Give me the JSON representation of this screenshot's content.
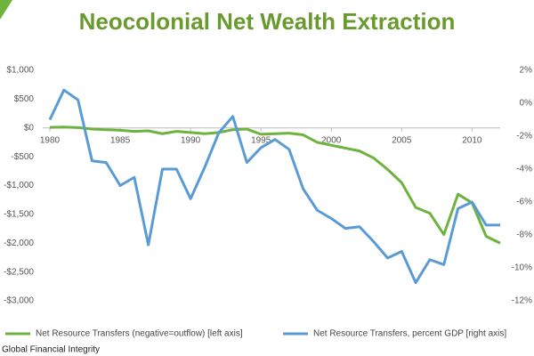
{
  "chart_data": {
    "type": "line",
    "title": "Neocolonial Net Wealth Extraction",
    "source": "Global Financial Integrity",
    "x": [
      1980,
      1981,
      1982,
      1983,
      1984,
      1985,
      1986,
      1987,
      1988,
      1989,
      1990,
      1991,
      1992,
      1993,
      1994,
      1995,
      1996,
      1997,
      1998,
      1999,
      2000,
      2001,
      2002,
      2003,
      2004,
      2005,
      2006,
      2007,
      2008,
      2009,
      2010,
      2011,
      2012
    ],
    "xlim": [
      1980,
      2012
    ],
    "xticks": [
      1980,
      1985,
      1990,
      1995,
      2000,
      2005,
      2010
    ],
    "ylim": [
      -3000,
      1000
    ],
    "yticks": [
      {
        "value": 1000,
        "label": "$1,000"
      },
      {
        "value": 500,
        "label": "$500"
      },
      {
        "value": 0,
        "label": "$0"
      },
      {
        "value": -500,
        "label": "-$500"
      },
      {
        "value": -1000,
        "label": "-$1,000"
      },
      {
        "value": -1500,
        "label": "-$1,500"
      },
      {
        "value": -2000,
        "label": "-$2,000"
      },
      {
        "value": -2500,
        "label": "-$2,500"
      },
      {
        "value": -3000,
        "label": "-$3,000"
      }
    ],
    "y2lim": [
      -12,
      2
    ],
    "y2ticks": [
      {
        "value": 2,
        "label": "2%"
      },
      {
        "value": 0,
        "label": "0%"
      },
      {
        "value": -2,
        "label": "-2%"
      },
      {
        "value": -4,
        "label": "-4%"
      },
      {
        "value": -6,
        "label": "-6%"
      },
      {
        "value": -8,
        "label": "-8%"
      },
      {
        "value": -10,
        "label": "-10%"
      },
      {
        "value": -12,
        "label": "-12%"
      }
    ],
    "series": [
      {
        "name": "Net Resource Transfers (negative=outflow) [left axis]",
        "color": "#6fb33f",
        "values": [
          10,
          15,
          5,
          -20,
          -30,
          -40,
          -60,
          -50,
          -100,
          -60,
          -80,
          -100,
          -80,
          -30,
          -20,
          -110,
          -100,
          -90,
          -120,
          -250,
          -300,
          -350,
          -400,
          -520,
          -720,
          -950,
          -1380,
          -1480,
          -1850,
          -1150,
          -1300,
          -1880,
          -2000
        ]
      },
      {
        "name": "Net Resource Transfers, percent GDP [right axis]",
        "color": "#5b9bd5",
        "axis": "y2",
        "values": [
          -1.0,
          0.8,
          0.2,
          -3.5,
          -3.6,
          -5.0,
          -4.5,
          -8.6,
          -4.0,
          -4.0,
          -5.8,
          -3.9,
          -1.8,
          -0.8,
          -3.6,
          -2.7,
          -2.2,
          -2.8,
          -5.2,
          -6.5,
          -7.0,
          -7.6,
          -7.5,
          -8.4,
          -9.4,
          -9.0,
          -10.9,
          -9.5,
          -9.8,
          -6.4,
          -6.0,
          -7.4,
          -7.4
        ]
      }
    ]
  }
}
